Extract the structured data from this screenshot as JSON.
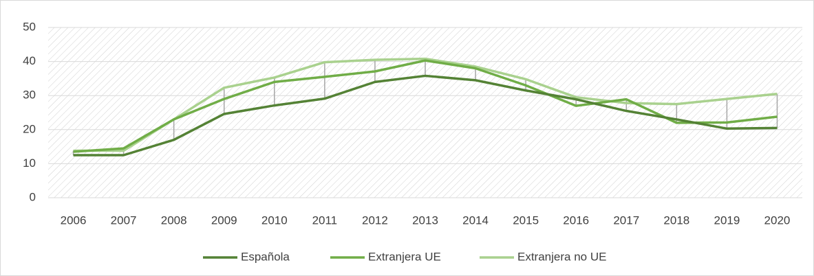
{
  "chart_data": {
    "type": "line",
    "categories": [
      "2006",
      "2007",
      "2008",
      "2009",
      "2010",
      "2011",
      "2012",
      "2013",
      "2014",
      "2015",
      "2016",
      "2017",
      "2018",
      "2019",
      "2020"
    ],
    "series": [
      {
        "name": "Española",
        "color": "#548235",
        "values": [
          12.5,
          12.5,
          17,
          24.6,
          27.1,
          29.1,
          34,
          35.8,
          34.5,
          31.5,
          28.9,
          25.5,
          23,
          20.3,
          20.5
        ]
      },
      {
        "name": "Extranjera UE",
        "color": "#70ad47",
        "values": [
          13.5,
          14.5,
          23,
          29,
          34,
          35.5,
          37.1,
          40.3,
          38,
          33,
          27,
          28.9,
          22,
          22.1,
          23.8
        ]
      },
      {
        "name": "Extranjera no UE",
        "color": "#a9d18e",
        "values": [
          13.8,
          13.8,
          23,
          32.3,
          35.3,
          39.8,
          40.5,
          40.8,
          38.5,
          34.8,
          29.5,
          27.8,
          27.5,
          29,
          30.5
        ]
      }
    ],
    "ylim": [
      0,
      50
    ],
    "yticks": [
      0,
      10,
      20,
      30,
      40,
      50
    ],
    "grid": true,
    "high_low_lines": true,
    "legend": "bottom"
  }
}
